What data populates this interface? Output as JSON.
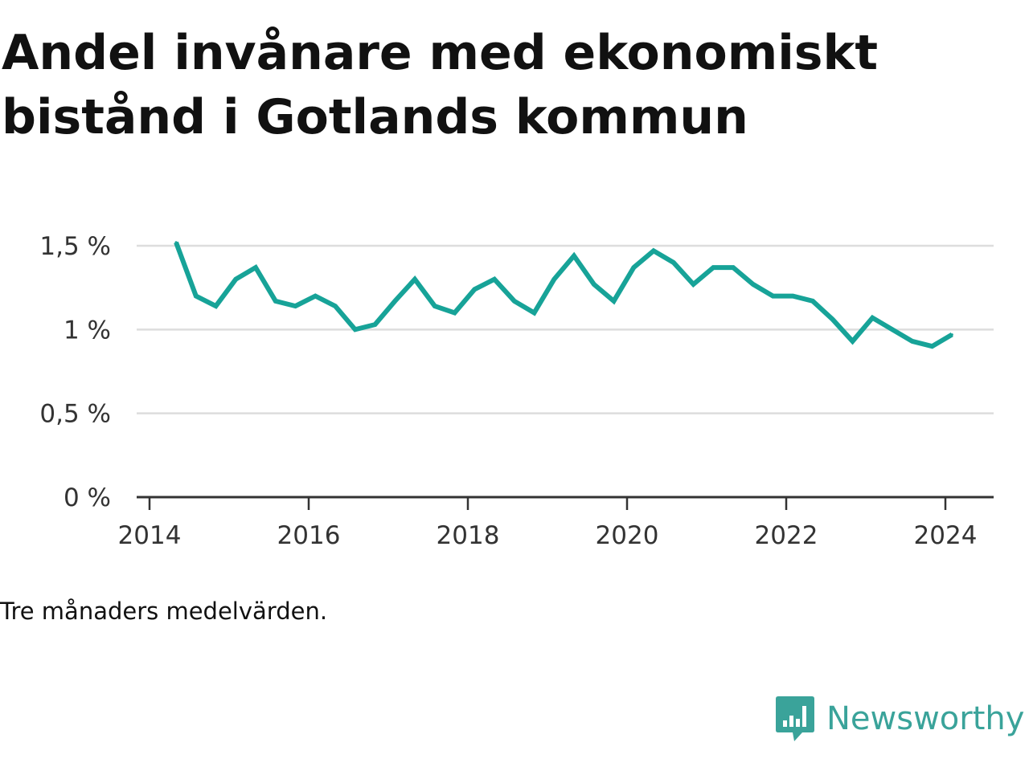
{
  "title": "Andel invånare med ekonomiskt bistånd i Gotlands kommun",
  "note": "Tre månaders medelvärden.",
  "brand": {
    "name": "Newsworthy",
    "icon": "newsworthy-logo-icon",
    "color": "#3aa39a"
  },
  "colors": {
    "line": "#17a398",
    "grid": "#dddddd",
    "axis": "#333333"
  },
  "chart_data": {
    "type": "line",
    "title": "Andel invånare med ekonomiskt bistånd i Gotlands kommun",
    "xlabel": "",
    "ylabel": "",
    "x_ticks": [
      "2014",
      "2016",
      "2018",
      "2020",
      "2022",
      "2024"
    ],
    "y_ticks": [
      "0 %",
      "0,5 %",
      "1 %",
      "1,5 %"
    ],
    "ylim": [
      0,
      1.5
    ],
    "grid": true,
    "legend": "none",
    "series": [
      {
        "x": [
          "2014-05",
          "2014-08",
          "2014-11",
          "2015-02",
          "2015-05",
          "2015-08",
          "2015-11",
          "2016-02",
          "2016-05",
          "2016-08",
          "2016-11",
          "2017-02",
          "2017-05",
          "2017-08",
          "2017-11",
          "2018-02",
          "2018-05",
          "2018-08",
          "2018-11",
          "2019-02",
          "2019-05",
          "2019-08",
          "2019-11",
          "2020-02",
          "2020-05",
          "2020-08",
          "2020-11",
          "2021-02",
          "2021-05",
          "2021-08",
          "2021-11",
          "2022-02",
          "2022-05",
          "2022-08",
          "2022-11",
          "2023-02",
          "2023-05",
          "2023-08",
          "2023-11",
          "2024-02"
        ],
        "values": [
          1.52,
          1.2,
          1.14,
          1.3,
          1.37,
          1.17,
          1.14,
          1.2,
          1.14,
          1.0,
          1.03,
          1.17,
          1.3,
          1.14,
          1.1,
          1.24,
          1.3,
          1.17,
          1.1,
          1.3,
          1.44,
          1.27,
          1.17,
          1.37,
          1.47,
          1.4,
          1.27,
          1.37,
          1.37,
          1.27,
          1.2,
          1.2,
          1.17,
          1.06,
          0.93,
          1.07,
          1.0,
          0.93,
          0.9,
          0.97
        ]
      }
    ]
  }
}
